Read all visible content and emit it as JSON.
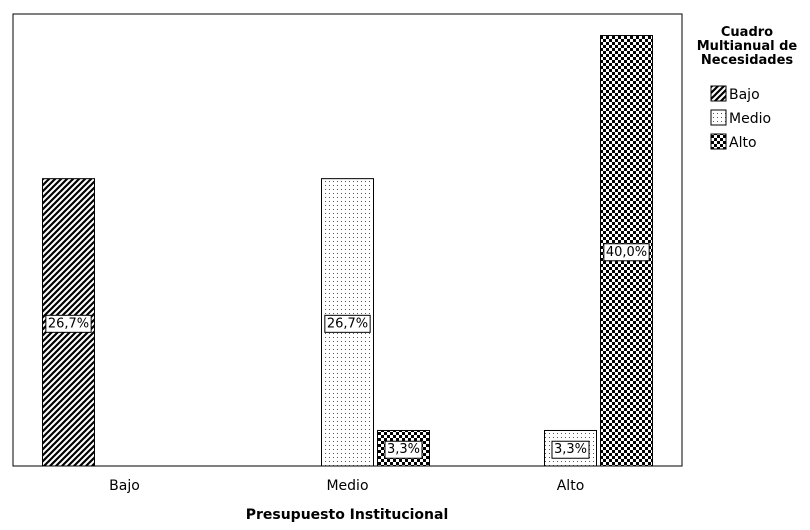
{
  "chart_data": {
    "type": "bar",
    "title": "",
    "xlabel": "Presupuesto Institucional",
    "ylabel": "",
    "categories": [
      "Bajo",
      "Medio",
      "Alto"
    ],
    "ylim": [
      0,
      42
    ],
    "grid": false,
    "legend": {
      "title": "Cuadro Multianual de Necesidades",
      "title_lines": [
        "Cuadro",
        "Multianual de",
        "Necesidades"
      ],
      "position": "top-right"
    },
    "series": [
      {
        "name": "Bajo",
        "pattern": "diagonal-hatch",
        "values": [
          26.7,
          0,
          0
        ]
      },
      {
        "name": "Medio",
        "pattern": "dotted",
        "values": [
          0,
          26.7,
          3.3
        ]
      },
      {
        "name": "Alto",
        "pattern": "checkerboard",
        "values": [
          0,
          3.3,
          40.0
        ]
      }
    ],
    "data_labels": [
      {
        "category": "Bajo",
        "series": "Bajo",
        "text": "26,7%"
      },
      {
        "category": "Medio",
        "series": "Medio",
        "text": "26,7%"
      },
      {
        "category": "Medio",
        "series": "Alto",
        "text": "3,3%"
      },
      {
        "category": "Alto",
        "series": "Medio",
        "text": "3,3%"
      },
      {
        "category": "Alto",
        "series": "Alto",
        "text": "40,0%"
      }
    ],
    "colors": {
      "fill": "#000000",
      "background": "#ffffff",
      "axis": "#000000"
    }
  }
}
